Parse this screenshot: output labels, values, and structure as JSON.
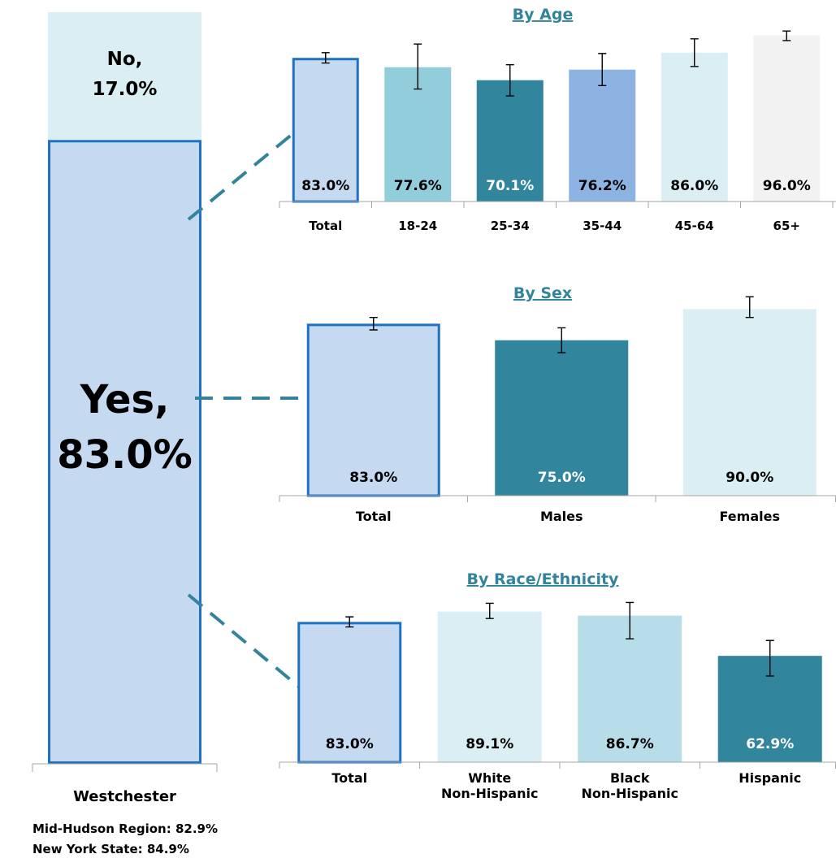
{
  "colors": {
    "total_fill": "#c5d9f1",
    "total_stroke": "#1f72c3",
    "teal_dark": "#31859c",
    "teal_light": "#92cddc",
    "pale_blue": "#daeef3",
    "light_cyan": "#b7dee8",
    "periwinkle": "#8db3e2",
    "pale_gray": "#f2f2f2",
    "title": "#31849b",
    "connector": "#31849b"
  },
  "chart_data": [
    {
      "type": "bar",
      "stacked": true,
      "categories": [
        "Westchester"
      ],
      "series": [
        {
          "name": "Yes",
          "values": [
            83.0
          ],
          "label": "Yes,\n83.0%"
        },
        {
          "name": "No",
          "values": [
            17.0
          ],
          "label": "No,\n17.0%"
        }
      ],
      "ylim": [
        0,
        100
      ]
    },
    {
      "type": "bar",
      "title": "By Age",
      "categories": [
        "Total",
        "18-24",
        "25-34",
        "35-44",
        "45-64",
        "65+"
      ],
      "values": [
        83.0,
        77.6,
        70.1,
        76.2,
        86.0,
        96.0
      ],
      "value_labels": [
        "83.0%",
        "77.6%",
        "70.1%",
        "76.2%",
        "86.0%",
        "96.0%"
      ],
      "error_bars": [
        [
          80.0,
          86.0
        ],
        [
          65.0,
          91.0
        ],
        [
          61.0,
          79.0
        ],
        [
          67.0,
          85.5
        ],
        [
          78.0,
          94.0
        ],
        [
          93.0,
          98.5
        ]
      ],
      "colors": [
        "#c5d9f1",
        "#92cddc",
        "#31859c",
        "#8db3e2",
        "#daeef3",
        "#f2f2f2"
      ],
      "ylim": [
        0,
        100
      ]
    },
    {
      "type": "bar",
      "title": "By Sex",
      "categories": [
        "Total",
        "Males",
        "Females"
      ],
      "values": [
        83.0,
        75.0,
        90.0
      ],
      "value_labels": [
        "83.0%",
        "75.0%",
        "90.0%"
      ],
      "error_bars": [
        [
          80.0,
          86.0
        ],
        [
          69.0,
          81.0
        ],
        [
          86.0,
          96.0
        ]
      ],
      "colors": [
        "#c5d9f1",
        "#31859c",
        "#daeef3"
      ],
      "ylim": [
        0,
        100
      ]
    },
    {
      "type": "bar",
      "title": "By Race/Ethnicity",
      "categories": [
        "Total",
        "White Non-Hispanic",
        "Black Non-Hispanic",
        "Hispanic"
      ],
      "values": [
        83.0,
        89.1,
        86.7,
        62.9
      ],
      "value_labels": [
        "83.0%",
        "89.1%",
        "86.7%",
        "62.9%"
      ],
      "error_bars": [
        [
          80.0,
          86.0
        ],
        [
          85.0,
          94.0
        ],
        [
          73.0,
          94.5
        ],
        [
          51.0,
          72.0
        ]
      ],
      "colors": [
        "#c5d9f1",
        "#daeef3",
        "#b7dee8",
        "#31859c"
      ],
      "ylim": [
        0,
        100
      ]
    }
  ],
  "notes": {
    "region": "Mid-Hudson Region: 82.9%",
    "state": "New York State: 84.9%"
  }
}
